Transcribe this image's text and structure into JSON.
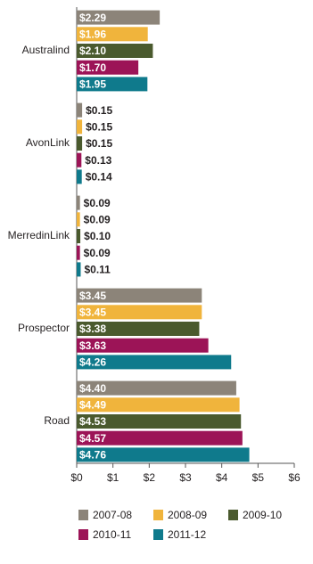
{
  "chart_data": {
    "type": "bar",
    "orientation": "horizontal",
    "categories": [
      "Australind",
      "AvonLink",
      "MerredinLink",
      "Prospector",
      "Road"
    ],
    "series": [
      {
        "name": "2007-08",
        "color": "#8c8479",
        "values": [
          2.29,
          0.15,
          0.09,
          3.45,
          4.4
        ],
        "value_labels": [
          "$2.29",
          "$0.15",
          "$0.09",
          "$3.45",
          "$4.40"
        ]
      },
      {
        "name": "2008-09",
        "color": "#f0b43c",
        "values": [
          1.96,
          0.15,
          0.09,
          3.45,
          4.49
        ],
        "value_labels": [
          "$1.96",
          "$0.15",
          "$0.09",
          "$3.45",
          "$4.49"
        ]
      },
      {
        "name": "2009-10",
        "color": "#4a5a2e",
        "values": [
          2.1,
          0.15,
          0.1,
          3.38,
          4.53
        ],
        "value_labels": [
          "$2.10",
          "$0.15",
          "$0.10",
          "$3.38",
          "$4.53"
        ]
      },
      {
        "name": "2010-11",
        "color": "#9c1457",
        "values": [
          1.7,
          0.13,
          0.09,
          3.63,
          4.57
        ],
        "value_labels": [
          "$1.70",
          "$0.13",
          "$0.09",
          "$3.63",
          "$4.57"
        ]
      },
      {
        "name": "2011-12",
        "color": "#0f7a8c",
        "values": [
          1.95,
          0.14,
          0.11,
          4.26,
          4.76
        ],
        "value_labels": [
          "$1.95",
          "$0.14",
          "$0.11",
          "$4.26",
          "$4.76"
        ]
      }
    ],
    "xlim": [
      0,
      6
    ],
    "xticks": [
      {
        "value": 0,
        "label": "$0"
      },
      {
        "value": 1,
        "label": "$1"
      },
      {
        "value": 2,
        "label": "$2"
      },
      {
        "value": 3,
        "label": "$3"
      },
      {
        "value": 4,
        "label": "$4"
      },
      {
        "value": 5,
        "label": "$5"
      },
      {
        "value": 6,
        "label": "$6"
      }
    ],
    "legend": "bottom"
  }
}
